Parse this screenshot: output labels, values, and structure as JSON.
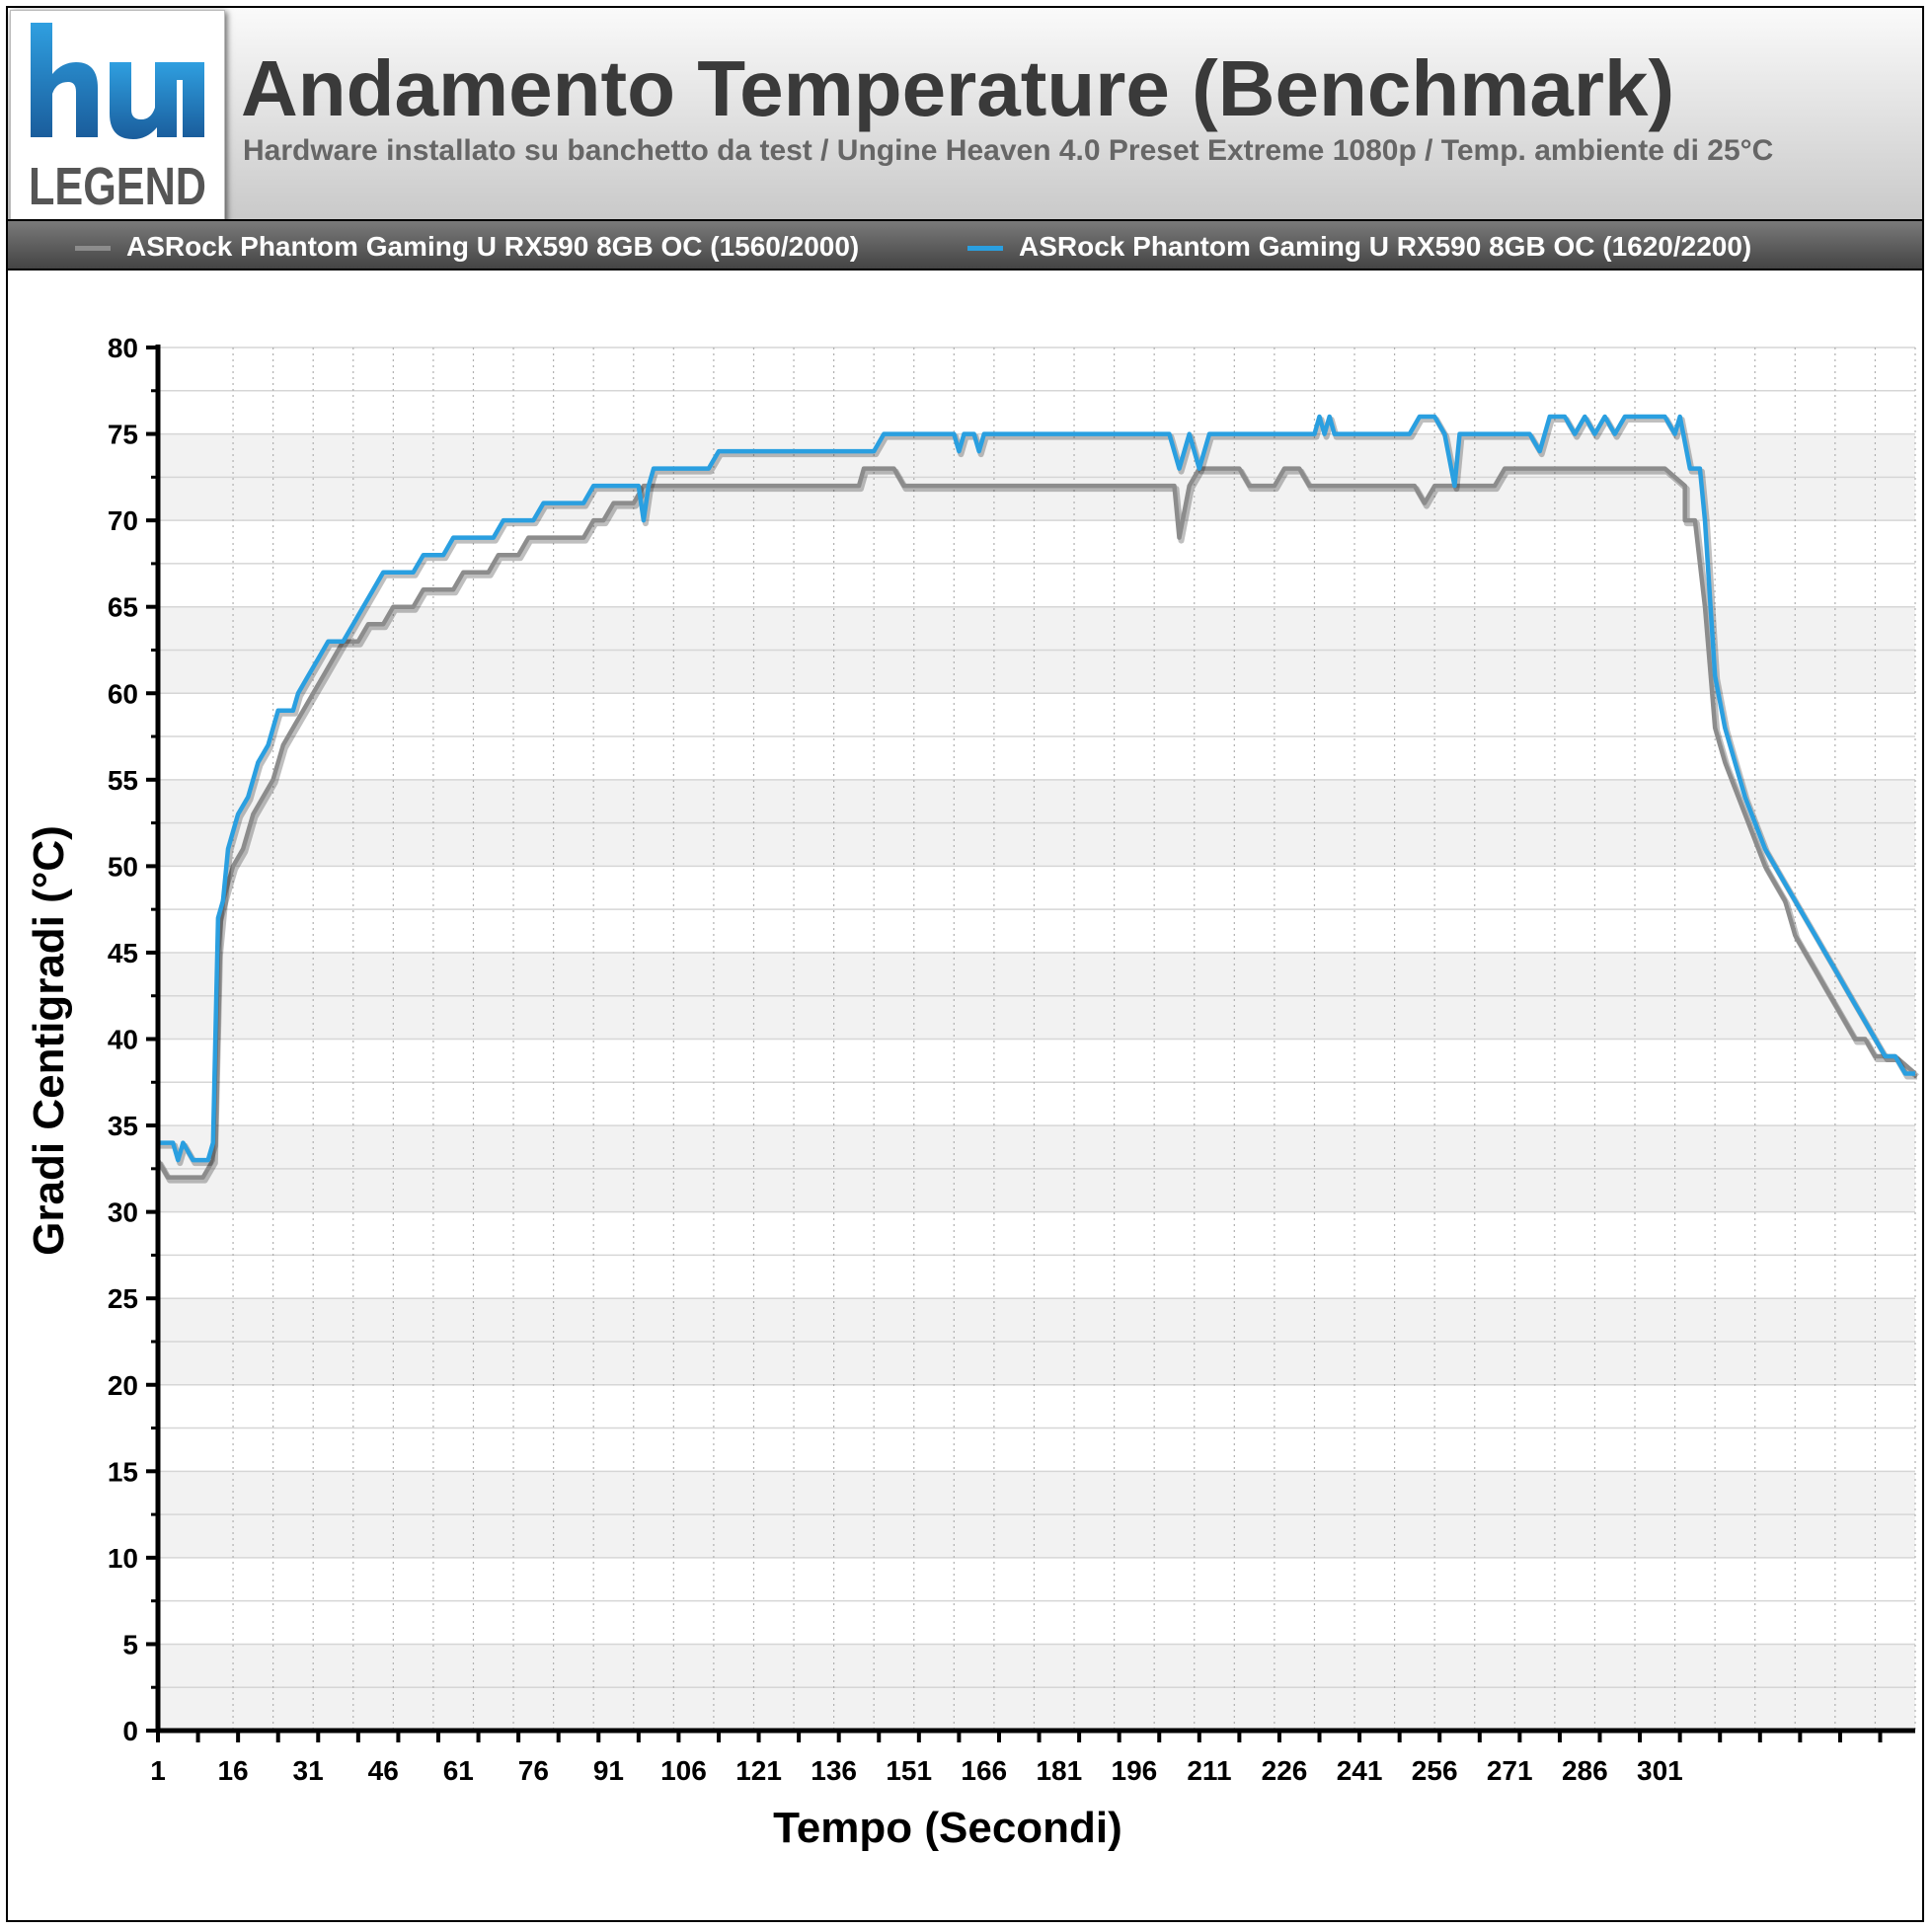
{
  "header": {
    "logo_top": "hu",
    "logo_bottom": "LEGEND",
    "title": "Andamento Temperature (Benchmark)",
    "subtitle": "Hardware installato su banchetto da test / Ungine Heaven 4.0 Preset Extreme 1080p / Temp. ambiente di 25°C"
  },
  "colors": {
    "series_gray": "#8c8c8c",
    "series_blue": "#2a9fe0",
    "axis": "#000000",
    "band": "#f2f2f2"
  },
  "chart_data": {
    "type": "line",
    "title": "Andamento Temperature (Benchmark)",
    "xlabel": "Tempo (Secondi)",
    "ylabel": "Gradi Centigradi (°C)",
    "xlim": [
      1,
      352
    ],
    "ylim": [
      0,
      80
    ],
    "y_ticks": [
      0,
      5,
      10,
      15,
      20,
      25,
      30,
      35,
      40,
      45,
      50,
      55,
      60,
      65,
      70,
      75,
      80
    ],
    "x_tick_labels": [
      "1",
      "16",
      "31",
      "46",
      "61",
      "76",
      "91",
      "106",
      "121",
      "136",
      "151",
      "166",
      "181",
      "196",
      "211",
      "226",
      "241",
      "256",
      "271",
      "286",
      "301"
    ],
    "grid": true,
    "legend_position": "top",
    "series": [
      {
        "name": "ASRock Phantom Gaming U RX590 8GB OC (1560/2000)",
        "color": "#8c8c8c",
        "points": [
          [
            1,
            33
          ],
          [
            3,
            32
          ],
          [
            10,
            32
          ],
          [
            12,
            33
          ],
          [
            13,
            45
          ],
          [
            14,
            48
          ],
          [
            16,
            50
          ],
          [
            18,
            51
          ],
          [
            20,
            53
          ],
          [
            22,
            54
          ],
          [
            24,
            55
          ],
          [
            26,
            57
          ],
          [
            28,
            58
          ],
          [
            30,
            59
          ],
          [
            32,
            60
          ],
          [
            34,
            61
          ],
          [
            36,
            62
          ],
          [
            38,
            63
          ],
          [
            41,
            63
          ],
          [
            43,
            64
          ],
          [
            46,
            64
          ],
          [
            48,
            65
          ],
          [
            52,
            65
          ],
          [
            54,
            66
          ],
          [
            60,
            66
          ],
          [
            62,
            67
          ],
          [
            67,
            67
          ],
          [
            69,
            68
          ],
          [
            73,
            68
          ],
          [
            75,
            69
          ],
          [
            86,
            69
          ],
          [
            88,
            70
          ],
          [
            90,
            70
          ],
          [
            92,
            71
          ],
          [
            96,
            71
          ],
          [
            98,
            72
          ],
          [
            141,
            72
          ],
          [
            142,
            73
          ],
          [
            148,
            73
          ],
          [
            150,
            72
          ],
          [
            204,
            72
          ],
          [
            205,
            69
          ],
          [
            207,
            72
          ],
          [
            209,
            73
          ],
          [
            217,
            73
          ],
          [
            219,
            72
          ],
          [
            224,
            72
          ],
          [
            226,
            73
          ],
          [
            229,
            73
          ],
          [
            231,
            72
          ],
          [
            252,
            72
          ],
          [
            254,
            71
          ],
          [
            256,
            72
          ],
          [
            268,
            72
          ],
          [
            270,
            73
          ],
          [
            285,
            73
          ],
          [
            289,
            73
          ],
          [
            302,
            73
          ],
          [
            306,
            72
          ],
          [
            306,
            70
          ],
          [
            308,
            70
          ],
          [
            310,
            65
          ],
          [
            312,
            58
          ],
          [
            314,
            56
          ],
          [
            318,
            53
          ],
          [
            322,
            50
          ],
          [
            326,
            48
          ],
          [
            328,
            46
          ],
          [
            330,
            45
          ],
          [
            332,
            44
          ],
          [
            334,
            43
          ],
          [
            336,
            42
          ],
          [
            338,
            41
          ],
          [
            340,
            40
          ],
          [
            342,
            40
          ],
          [
            344,
            39
          ],
          [
            348,
            39
          ],
          [
            352,
            38
          ]
        ]
      },
      {
        "name": "ASRock Phantom Gaming U RX590 8GB OC (1620/2200)",
        "color": "#2a9fe0",
        "points": [
          [
            1,
            34
          ],
          [
            4,
            34
          ],
          [
            5,
            33
          ],
          [
            6,
            34
          ],
          [
            8,
            33
          ],
          [
            11,
            33
          ],
          [
            12,
            34
          ],
          [
            13,
            47
          ],
          [
            14,
            48
          ],
          [
            15,
            51
          ],
          [
            17,
            53
          ],
          [
            19,
            54
          ],
          [
            21,
            56
          ],
          [
            23,
            57
          ],
          [
            25,
            59
          ],
          [
            28,
            59
          ],
          [
            29,
            60
          ],
          [
            31,
            61
          ],
          [
            33,
            62
          ],
          [
            35,
            63
          ],
          [
            38,
            63
          ],
          [
            40,
            64
          ],
          [
            42,
            65
          ],
          [
            44,
            66
          ],
          [
            46,
            67
          ],
          [
            52,
            67
          ],
          [
            54,
            68
          ],
          [
            58,
            68
          ],
          [
            60,
            69
          ],
          [
            68,
            69
          ],
          [
            70,
            70
          ],
          [
            76,
            70
          ],
          [
            78,
            71
          ],
          [
            86,
            71
          ],
          [
            88,
            72
          ],
          [
            97,
            72
          ],
          [
            98,
            70
          ],
          [
            99,
            72
          ],
          [
            100,
            73
          ],
          [
            111,
            73
          ],
          [
            113,
            74
          ],
          [
            144,
            74
          ],
          [
            146,
            75
          ],
          [
            160,
            75
          ],
          [
            161,
            74
          ],
          [
            162,
            75
          ],
          [
            164,
            75
          ],
          [
            165,
            74
          ],
          [
            166,
            75
          ],
          [
            203,
            75
          ],
          [
            205,
            73
          ],
          [
            207,
            75
          ],
          [
            209,
            73
          ],
          [
            211,
            75
          ],
          [
            232,
            75
          ],
          [
            233,
            76
          ],
          [
            234,
            75
          ],
          [
            235,
            76
          ],
          [
            236,
            75
          ],
          [
            251,
            75
          ],
          [
            253,
            76
          ],
          [
            256,
            76
          ],
          [
            258,
            75
          ],
          [
            260,
            72
          ],
          [
            261,
            75
          ],
          [
            275,
            75
          ],
          [
            277,
            74
          ],
          [
            279,
            76
          ],
          [
            282,
            76
          ],
          [
            284,
            75
          ],
          [
            286,
            76
          ],
          [
            288,
            75
          ],
          [
            290,
            76
          ],
          [
            292,
            75
          ],
          [
            294,
            76
          ],
          [
            302,
            76
          ],
          [
            304,
            75
          ],
          [
            305,
            76
          ],
          [
            307,
            73
          ],
          [
            309,
            73
          ],
          [
            310,
            70
          ],
          [
            312,
            61
          ],
          [
            314,
            58
          ],
          [
            318,
            54
          ],
          [
            322,
            51
          ],
          [
            326,
            49
          ],
          [
            328,
            48
          ],
          [
            330,
            47
          ],
          [
            332,
            46
          ],
          [
            334,
            45
          ],
          [
            336,
            44
          ],
          [
            338,
            43
          ],
          [
            340,
            42
          ],
          [
            342,
            41
          ],
          [
            344,
            40
          ],
          [
            346,
            39
          ],
          [
            348,
            39
          ],
          [
            350,
            38
          ],
          [
            352,
            38
          ]
        ]
      }
    ]
  }
}
